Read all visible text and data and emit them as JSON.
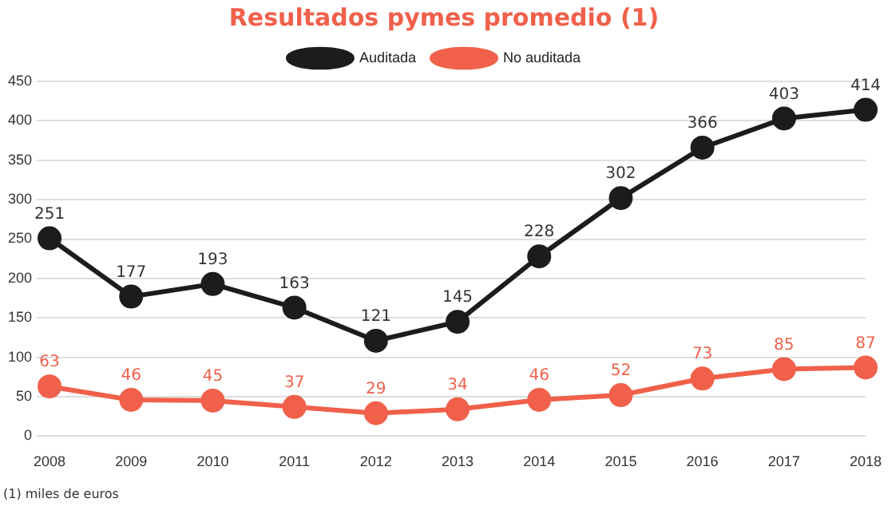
{
  "chart_data": {
    "type": "line",
    "title": "Resultados pymes promedio (1)",
    "categories": [
      "2008",
      "2009",
      "2010",
      "2011",
      "2012",
      "2013",
      "2014",
      "2015",
      "2016",
      "2017",
      "2018"
    ],
    "series": [
      {
        "name": "Auditada",
        "color": "#1c1c1c",
        "values": [
          251,
          177,
          193,
          163,
          121,
          145,
          228,
          302,
          366,
          403,
          414
        ]
      },
      {
        "name": "No auditada",
        "color": "#f0604a",
        "values": [
          63,
          46,
          45,
          37,
          29,
          34,
          46,
          52,
          73,
          85,
          87
        ]
      }
    ],
    "ylim": [
      0,
      450
    ],
    "yticks": [
      0,
      50,
      100,
      150,
      200,
      250,
      300,
      350,
      400,
      450
    ],
    "grid": "y",
    "legend": "top",
    "marker": "circle",
    "line_style": "solid",
    "data_labels": true,
    "annotations": [
      "(1) miles de euros"
    ]
  }
}
